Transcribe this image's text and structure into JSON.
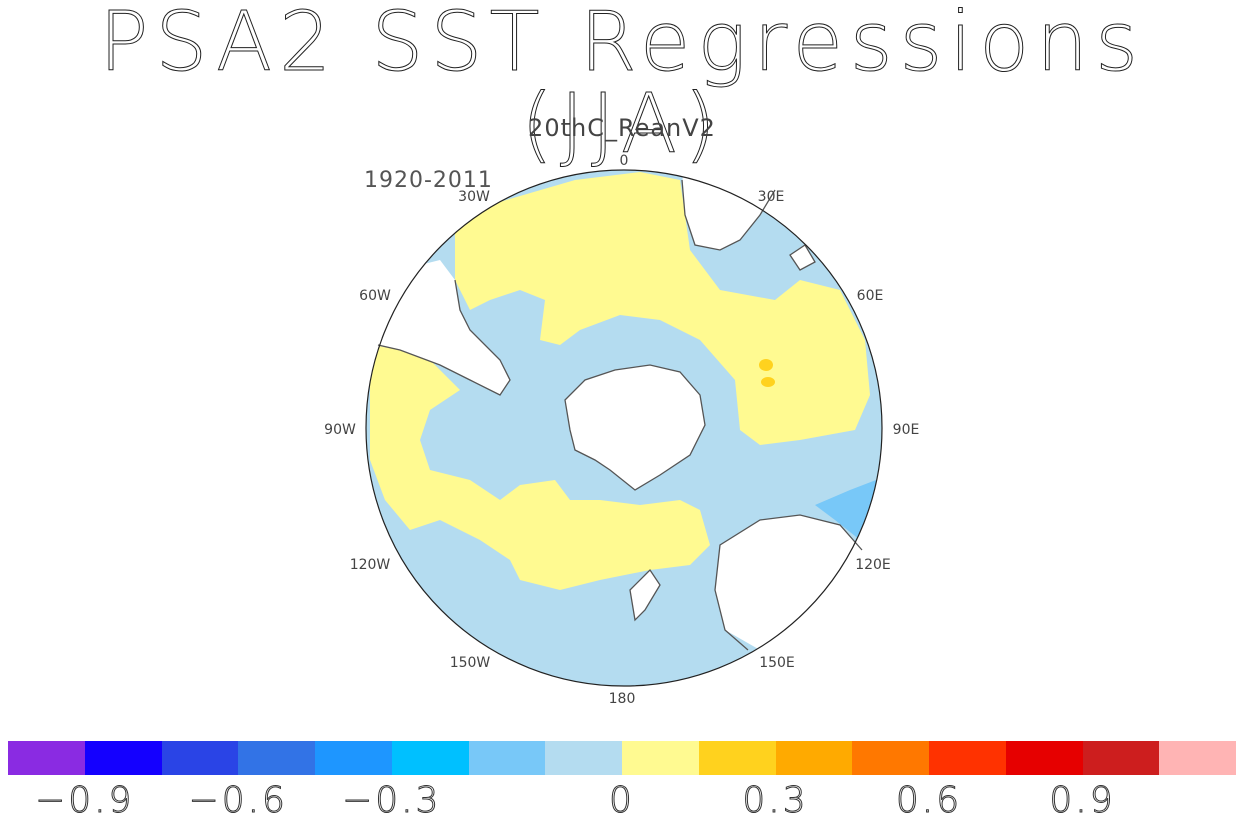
{
  "title": "PSA2 SST Regressions (JJA)",
  "subtitle": "20thC_ReanV2",
  "period": "1920-2011",
  "longitude_labels": [
    {
      "lon": "0",
      "text": "0"
    },
    {
      "lon": "30E",
      "text": "30E"
    },
    {
      "lon": "60E",
      "text": "60E"
    },
    {
      "lon": "90E",
      "text": "90E"
    },
    {
      "lon": "120E",
      "text": "120E"
    },
    {
      "lon": "150E",
      "text": "150E"
    },
    {
      "lon": "180",
      "text": "180"
    },
    {
      "lon": "150W",
      "text": "150W"
    },
    {
      "lon": "120W",
      "text": "120W"
    },
    {
      "lon": "90W",
      "text": "90W"
    },
    {
      "lon": "60W",
      "text": "60W"
    },
    {
      "lon": "30W",
      "text": "30W"
    }
  ],
  "colorbar": {
    "colors": [
      "#8a2be2",
      "#1400ff",
      "#2a44e6",
      "#3273e6",
      "#1e96ff",
      "#00c0ff",
      "#78c8f8",
      "#b4dcf0",
      "#fffa91",
      "#ffd21e",
      "#ffaa00",
      "#ff7800",
      "#ff3200",
      "#e60000",
      "#cd1e1e",
      "#ffb4b4"
    ],
    "tick_labels": [
      {
        "after_swatch": 1,
        "text": "−0.9"
      },
      {
        "after_swatch": 3,
        "text": "−0.6"
      },
      {
        "after_swatch": 5,
        "text": "−0.3"
      },
      {
        "after_swatch": 8,
        "text": "0"
      },
      {
        "after_swatch": 10,
        "text": "0.3"
      },
      {
        "after_swatch": 12,
        "text": "0.6"
      },
      {
        "after_swatch": 14,
        "text": "0.9"
      }
    ]
  },
  "map_colors": {
    "ocean_negative": "#b4dcf0",
    "ocean_positive": "#fffa91",
    "strong_negative": "#78c8f8",
    "strong_positive": "#ffd21e",
    "land": "#ffffff",
    "coast": "#555555"
  }
}
